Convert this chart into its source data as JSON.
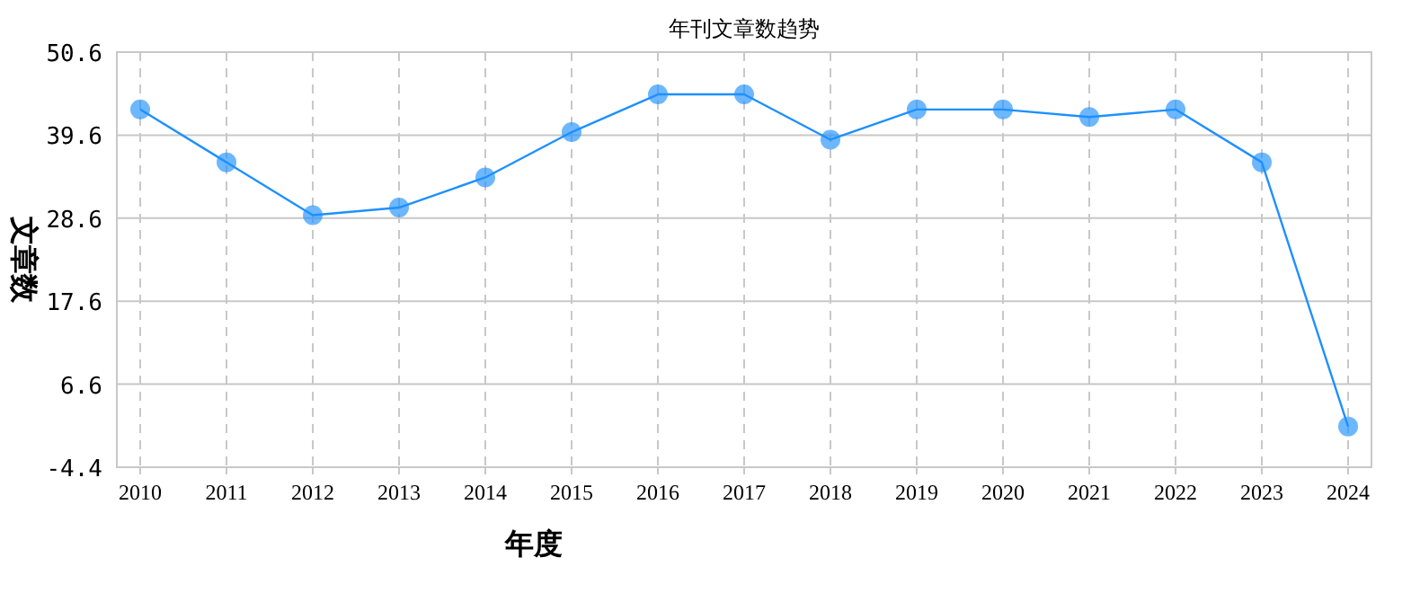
{
  "chart_data": {
    "type": "line",
    "title": "年刊文章数趋势",
    "xlabel": "年度",
    "ylabel": "文章数",
    "categories": [
      "2010",
      "2011",
      "2012",
      "2013",
      "2014",
      "2015",
      "2016",
      "2017",
      "2018",
      "2019",
      "2020",
      "2021",
      "2022",
      "2023",
      "2024"
    ],
    "series": [
      {
        "color": "#1e90ff",
        "values": [
          43,
          36,
          29,
          30,
          34,
          40,
          45,
          45,
          39,
          43,
          43,
          42,
          43,
          36,
          1
        ]
      }
    ],
    "ylim": [
      -4.4,
      50.6
    ],
    "yticks": [
      -4.4,
      6.6,
      17.6,
      28.6,
      39.6,
      50.6
    ],
    "grid": true,
    "marker": "circle",
    "line_style": "solid"
  }
}
